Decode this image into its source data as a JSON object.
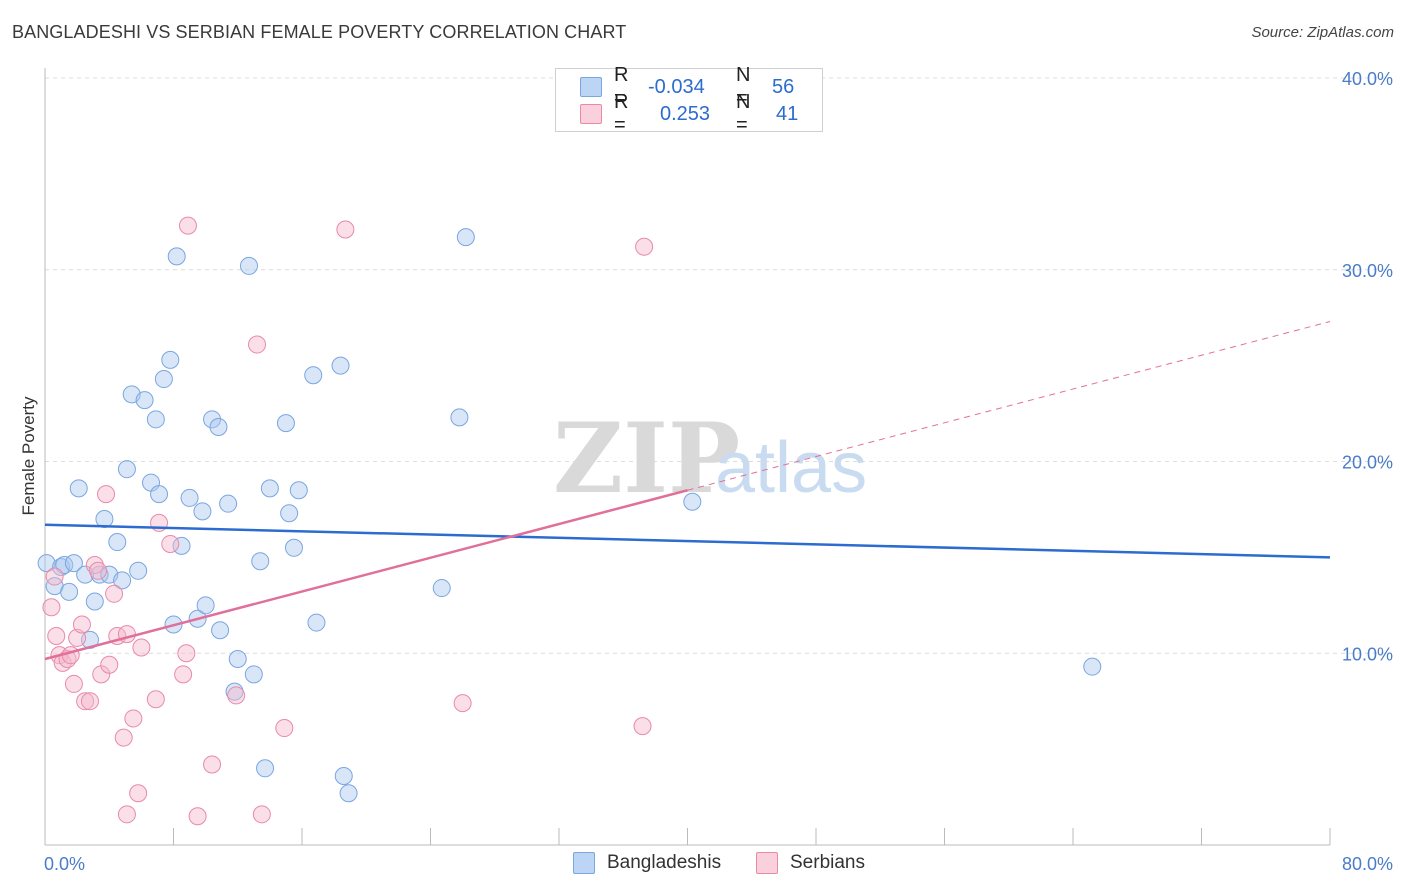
{
  "header": {
    "title": "BANGLADESHI VS SERBIAN FEMALE POVERTY CORRELATION CHART",
    "source": "Source: ZipAtlas.com"
  },
  "legend": {
    "r_label": "R =",
    "n_label": "N =",
    "rows": [
      {
        "r": "-0.034",
        "n": "56",
        "color": "#a8c8f0"
      },
      {
        "r": "0.253",
        "n": "41",
        "color": "#f5b8cc"
      }
    ]
  },
  "bottom_legend": [
    "Bangladeshis",
    "Serbians"
  ],
  "watermark": {
    "zip": "ZIP",
    "atlas": "atlas"
  },
  "chart_data": {
    "type": "scatter",
    "title": "BANGLADESHI VS SERBIAN FEMALE POVERTY CORRELATION CHART",
    "xlabel": "",
    "ylabel": "Female Poverty",
    "xlim": [
      0,
      80
    ],
    "ylim": [
      0,
      40
    ],
    "x_tick_labels": [
      "0.0%",
      "80.0%"
    ],
    "y_ticks": [
      10,
      20,
      30,
      40
    ],
    "y_tick_labels": [
      "10.0%",
      "20.0%",
      "30.0%",
      "40.0%"
    ],
    "grid": true,
    "colors": {
      "bangladeshis": "#2c6bd0",
      "serbians": "#e0709a",
      "grid": "#dcdcdc"
    },
    "series": [
      {
        "name": "Bangladeshis",
        "r": -0.034,
        "n": 56,
        "trend": {
          "x0": 0,
          "y0": 16.7,
          "x1": 80,
          "y1": 15.0
        },
        "points": [
          [
            0.1,
            14.7
          ],
          [
            0.6,
            13.5
          ],
          [
            1.0,
            14.5
          ],
          [
            1.2,
            14.6
          ],
          [
            1.5,
            13.2
          ],
          [
            1.8,
            14.7
          ],
          [
            2.1,
            18.6
          ],
          [
            2.5,
            14.1
          ],
          [
            2.8,
            10.7
          ],
          [
            3.1,
            12.7
          ],
          [
            3.4,
            14.1
          ],
          [
            3.7,
            17.0
          ],
          [
            4.0,
            14.1
          ],
          [
            4.5,
            15.8
          ],
          [
            4.8,
            13.8
          ],
          [
            5.1,
            19.6
          ],
          [
            5.4,
            23.5
          ],
          [
            5.8,
            14.3
          ],
          [
            6.2,
            23.2
          ],
          [
            6.6,
            18.9
          ],
          [
            6.9,
            22.2
          ],
          [
            7.1,
            18.3
          ],
          [
            7.4,
            24.3
          ],
          [
            7.8,
            25.3
          ],
          [
            8.0,
            11.5
          ],
          [
            8.2,
            30.7
          ],
          [
            8.5,
            15.6
          ],
          [
            9.0,
            18.1
          ],
          [
            9.5,
            11.8
          ],
          [
            9.8,
            17.4
          ],
          [
            10.0,
            12.5
          ],
          [
            10.4,
            22.2
          ],
          [
            10.8,
            21.8
          ],
          [
            10.9,
            11.2
          ],
          [
            11.4,
            17.8
          ],
          [
            11.8,
            8.0
          ],
          [
            12.0,
            9.7
          ],
          [
            12.7,
            30.2
          ],
          [
            13.0,
            8.9
          ],
          [
            13.4,
            14.8
          ],
          [
            13.7,
            4.0
          ],
          [
            14.0,
            18.6
          ],
          [
            15.0,
            22.0
          ],
          [
            15.2,
            17.3
          ],
          [
            15.5,
            15.5
          ],
          [
            15.8,
            18.5
          ],
          [
            16.7,
            24.5
          ],
          [
            16.9,
            11.6
          ],
          [
            18.4,
            25.0
          ],
          [
            18.6,
            3.6
          ],
          [
            18.9,
            2.7
          ],
          [
            24.7,
            13.4
          ],
          [
            25.8,
            22.3
          ],
          [
            26.2,
            31.7
          ],
          [
            40.3,
            17.9
          ],
          [
            65.2,
            9.3
          ]
        ]
      },
      {
        "name": "Serbians",
        "r": 0.253,
        "n": 41,
        "trend": {
          "x0": 0,
          "y0": 9.7,
          "x1": 40,
          "y1": 18.5,
          "dash_x1": 80,
          "dash_y1": 27.3
        },
        "points": [
          [
            0.4,
            12.4
          ],
          [
            0.6,
            14.0
          ],
          [
            0.7,
            10.9
          ],
          [
            0.9,
            9.9
          ],
          [
            1.1,
            9.5
          ],
          [
            1.4,
            9.7
          ],
          [
            1.6,
            9.9
          ],
          [
            1.8,
            8.4
          ],
          [
            2.0,
            10.8
          ],
          [
            2.3,
            11.5
          ],
          [
            2.5,
            7.5
          ],
          [
            2.8,
            7.5
          ],
          [
            3.1,
            14.6
          ],
          [
            3.3,
            14.3
          ],
          [
            3.5,
            8.9
          ],
          [
            3.8,
            18.3
          ],
          [
            4.0,
            9.4
          ],
          [
            4.3,
            13.1
          ],
          [
            4.5,
            10.9
          ],
          [
            4.9,
            5.6
          ],
          [
            5.1,
            11.0
          ],
          [
            5.5,
            6.6
          ],
          [
            5.8,
            2.7
          ],
          [
            6.0,
            10.3
          ],
          [
            5.1,
            1.6
          ],
          [
            6.9,
            7.6
          ],
          [
            7.1,
            16.8
          ],
          [
            7.8,
            15.7
          ],
          [
            8.6,
            8.9
          ],
          [
            8.8,
            10.0
          ],
          [
            8.9,
            32.3
          ],
          [
            9.5,
            1.5
          ],
          [
            10.4,
            4.2
          ],
          [
            11.9,
            7.8
          ],
          [
            13.2,
            26.1
          ],
          [
            13.5,
            1.6
          ],
          [
            14.9,
            6.1
          ],
          [
            18.7,
            32.1
          ],
          [
            26.0,
            7.4
          ],
          [
            37.3,
            31.2
          ],
          [
            37.2,
            6.2
          ]
        ]
      }
    ]
  }
}
